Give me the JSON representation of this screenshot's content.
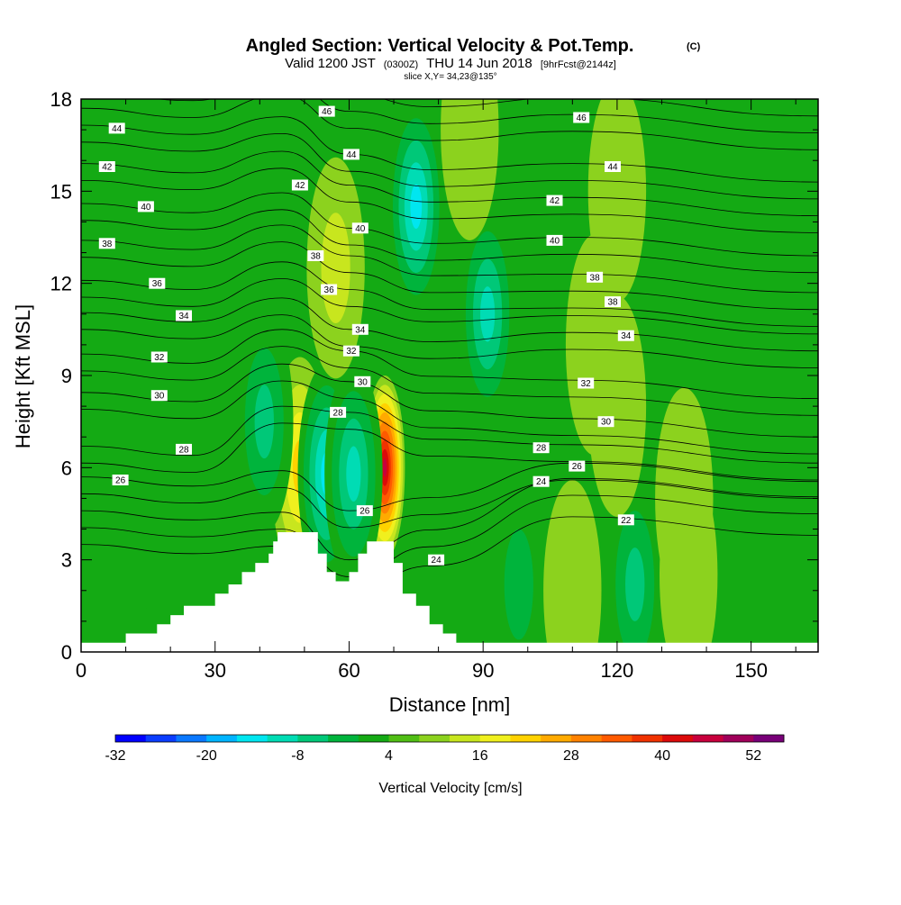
{
  "header": {
    "title": "Angled Section: Vertical Velocity & Pot.Temp.",
    "title_unit": "(C)",
    "valid_prefix": "Valid 1200 JST",
    "valid_utc": "(0300Z)",
    "valid_date": "THU 14 Jun 2018",
    "forecast": "[9hrFcst@2144z]",
    "slice": "slice X,Y= 34,23@135°"
  },
  "chart_data": {
    "type": "heatmap",
    "xlabel": "Distance [nm]",
    "ylabel": "Height [Kft MSL]",
    "xlim": [
      0,
      165
    ],
    "ylim": [
      0,
      18
    ],
    "x_ticks": [
      0,
      30,
      60,
      90,
      120,
      150
    ],
    "y_ticks": [
      0,
      3,
      6,
      9,
      12,
      15,
      18
    ],
    "colorbar": {
      "title": "Vertical Velocity [cm/s]",
      "tick_values": [
        -32,
        -20,
        -8,
        4,
        16,
        28,
        40,
        52
      ],
      "tick_labels": [
        "-32",
        "-20",
        "-8",
        "4",
        "16",
        "28",
        "40",
        "52"
      ],
      "range": [
        -32,
        56
      ],
      "step": 4,
      "colors": [
        "#0000ff",
        "#0a3cff",
        "#0a78ff",
        "#00b4ff",
        "#00e6f0",
        "#00dcb4",
        "#00c878",
        "#00b43c",
        "#14aa14",
        "#50be14",
        "#8cd21e",
        "#c8e61e",
        "#f0f01e",
        "#ffd200",
        "#ffaa00",
        "#ff8200",
        "#ff5a00",
        "#f03200",
        "#dc0a0a",
        "#c8003c",
        "#a0005a",
        "#780078"
      ]
    },
    "terrain_nm_kft": [
      [
        0,
        0.3
      ],
      [
        10,
        0.3
      ],
      [
        10,
        0.6
      ],
      [
        17,
        0.6
      ],
      [
        17,
        0.9
      ],
      [
        20,
        0.9
      ],
      [
        20,
        1.2
      ],
      [
        23,
        1.2
      ],
      [
        23,
        1.5
      ],
      [
        30,
        1.5
      ],
      [
        30,
        1.9
      ],
      [
        33,
        1.9
      ],
      [
        33,
        2.2
      ],
      [
        36,
        2.2
      ],
      [
        36,
        2.6
      ],
      [
        39,
        2.6
      ],
      [
        39,
        2.9
      ],
      [
        42,
        2.9
      ],
      [
        42,
        3.2
      ],
      [
        43,
        3.2
      ],
      [
        43,
        3.6
      ],
      [
        44,
        3.6
      ],
      [
        44,
        3.9
      ],
      [
        53,
        3.9
      ],
      [
        53,
        3.2
      ],
      [
        55,
        3.2
      ],
      [
        55,
        2.6
      ],
      [
        57,
        2.6
      ],
      [
        57,
        2.3
      ],
      [
        60,
        2.3
      ],
      [
        60,
        2.6
      ],
      [
        62,
        2.6
      ],
      [
        62,
        3.2
      ],
      [
        64,
        3.2
      ],
      [
        64,
        3.6
      ],
      [
        70,
        3.6
      ],
      [
        70,
        2.9
      ],
      [
        72,
        2.9
      ],
      [
        72,
        1.9
      ],
      [
        75,
        1.9
      ],
      [
        75,
        1.5
      ],
      [
        78,
        1.5
      ],
      [
        78,
        0.9
      ],
      [
        81,
        0.9
      ],
      [
        81,
        0.6
      ],
      [
        84,
        0.6
      ],
      [
        84,
        0.3
      ],
      [
        165,
        0.3
      ]
    ],
    "vertical_velocity_features": [
      {
        "x_nm": 68,
        "y_kft": 6.0,
        "value": 44
      },
      {
        "x_nm": 49,
        "y_kft": 6.0,
        "value": 20
      },
      {
        "x_nm": 55,
        "y_kft": 5.8,
        "value": -16
      },
      {
        "x_nm": 61,
        "y_kft": 5.8,
        "value": -12
      },
      {
        "x_nm": 75,
        "y_kft": 14.5,
        "value": -16
      },
      {
        "x_nm": 91,
        "y_kft": 11.0,
        "value": -14
      },
      {
        "x_nm": 41,
        "y_kft": 7.5,
        "value": -10
      },
      {
        "x_nm": 57,
        "y_kft": 12.5,
        "value": 12
      },
      {
        "x_nm": 87,
        "y_kft": 17.0,
        "value": 10
      },
      {
        "x_nm": 120,
        "y_kft": 15.0,
        "value": 8
      },
      {
        "x_nm": 115,
        "y_kft": 10.0,
        "value": 9
      },
      {
        "x_nm": 98,
        "y_kft": 2.2,
        "value": -6
      },
      {
        "x_nm": 124,
        "y_kft": 2.2,
        "value": -10
      },
      {
        "x_nm": 136,
        "y_kft": 2.5,
        "value": 6
      },
      {
        "x_nm": 110,
        "y_kft": 2.0,
        "value": 9
      },
      {
        "x_nm": 120,
        "y_kft": 8.0,
        "value": 8
      },
      {
        "x_nm": 135,
        "y_kft": 5.0,
        "value": 8
      },
      {
        "x_nm": 14,
        "y_kft": 5.0,
        "value": 3
      }
    ],
    "theta_contour_labels": [
      {
        "value": 44,
        "x_nm": 8,
        "y_kft": 17.05
      },
      {
        "value": 42,
        "x_nm": 5.8,
        "y_kft": 15.8
      },
      {
        "value": 40,
        "x_nm": 14.5,
        "y_kft": 14.5
      },
      {
        "value": 38,
        "x_nm": 5.8,
        "y_kft": 13.3
      },
      {
        "value": 36,
        "x_nm": 17,
        "y_kft": 12.0
      },
      {
        "value": 34,
        "x_nm": 23,
        "y_kft": 10.95
      },
      {
        "value": 32,
        "x_nm": 17.5,
        "y_kft": 9.6
      },
      {
        "value": 30,
        "x_nm": 17.5,
        "y_kft": 8.35
      },
      {
        "value": 28,
        "x_nm": 23,
        "y_kft": 6.6
      },
      {
        "value": 26,
        "x_nm": 8.8,
        "y_kft": 5.6
      },
      {
        "value": 46,
        "x_nm": 55,
        "y_kft": 17.6
      },
      {
        "value": 44,
        "x_nm": 60.5,
        "y_kft": 16.2
      },
      {
        "value": 42,
        "x_nm": 49,
        "y_kft": 15.2
      },
      {
        "value": 40,
        "x_nm": 62.5,
        "y_kft": 13.8
      },
      {
        "value": 38,
        "x_nm": 52.5,
        "y_kft": 12.9
      },
      {
        "value": 36,
        "x_nm": 55.5,
        "y_kft": 11.8
      },
      {
        "value": 34,
        "x_nm": 62.5,
        "y_kft": 10.5
      },
      {
        "value": 32,
        "x_nm": 60.5,
        "y_kft": 9.8
      },
      {
        "value": 30,
        "x_nm": 63,
        "y_kft": 8.8
      },
      {
        "value": 28,
        "x_nm": 57.5,
        "y_kft": 7.8
      },
      {
        "value": 26,
        "x_nm": 63.5,
        "y_kft": 4.6
      },
      {
        "value": 24,
        "x_nm": 79.5,
        "y_kft": 3.0
      },
      {
        "value": 46,
        "x_nm": 112,
        "y_kft": 17.4
      },
      {
        "value": 44,
        "x_nm": 119,
        "y_kft": 15.8
      },
      {
        "value": 42,
        "x_nm": 106,
        "y_kft": 14.7
      },
      {
        "value": 40,
        "x_nm": 106,
        "y_kft": 13.4
      },
      {
        "value": 38,
        "x_nm": 115,
        "y_kft": 12.2
      },
      {
        "value": 38,
        "x_nm": 119,
        "y_kft": 11.4
      },
      {
        "value": 34,
        "x_nm": 122,
        "y_kft": 10.3
      },
      {
        "value": 32,
        "x_nm": 113,
        "y_kft": 8.75
      },
      {
        "value": 30,
        "x_nm": 117.5,
        "y_kft": 7.5
      },
      {
        "value": 28,
        "x_nm": 103,
        "y_kft": 6.65
      },
      {
        "value": 26,
        "x_nm": 111,
        "y_kft": 6.05
      },
      {
        "value": 24,
        "x_nm": 103,
        "y_kft": 5.55
      },
      {
        "value": 22,
        "x_nm": 122,
        "y_kft": 4.3
      }
    ]
  }
}
